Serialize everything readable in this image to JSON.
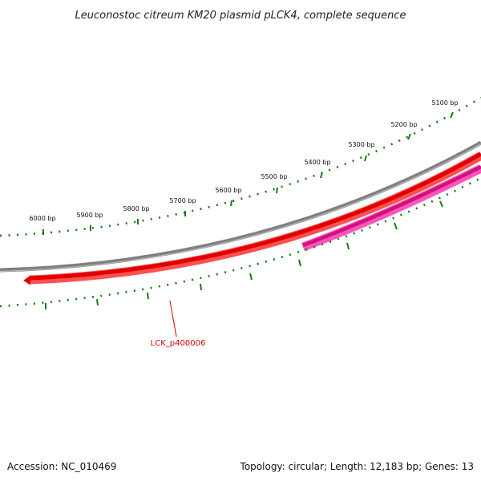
{
  "title": "Leuconostoc citreum KM20 plasmid pLCK4, complete sequence",
  "footer": {
    "accession": "Accession: NC_010469",
    "topology": "Topology: circular; Length: 12,183 bp; Genes: 13"
  },
  "scale_ticks": [
    {
      "label": "5100 bp"
    },
    {
      "label": "5200 bp"
    },
    {
      "label": "5300 bp"
    },
    {
      "label": "5400 bp"
    },
    {
      "label": "5500 bp"
    },
    {
      "label": "5600 bp"
    },
    {
      "label": "5700 bp"
    },
    {
      "label": "5800 bp"
    },
    {
      "label": "5900 bp"
    },
    {
      "label": "6000 bp"
    }
  ],
  "genes": [
    {
      "label": "LCK_p400006",
      "color": "#ff0000",
      "strand": "reverse"
    },
    {
      "label": "",
      "color": "#ff1493",
      "strand": "forward"
    }
  ],
  "colors": {
    "backbone": "#808080",
    "ticks": "#1a7a1a",
    "gene_label": "#d40000"
  }
}
